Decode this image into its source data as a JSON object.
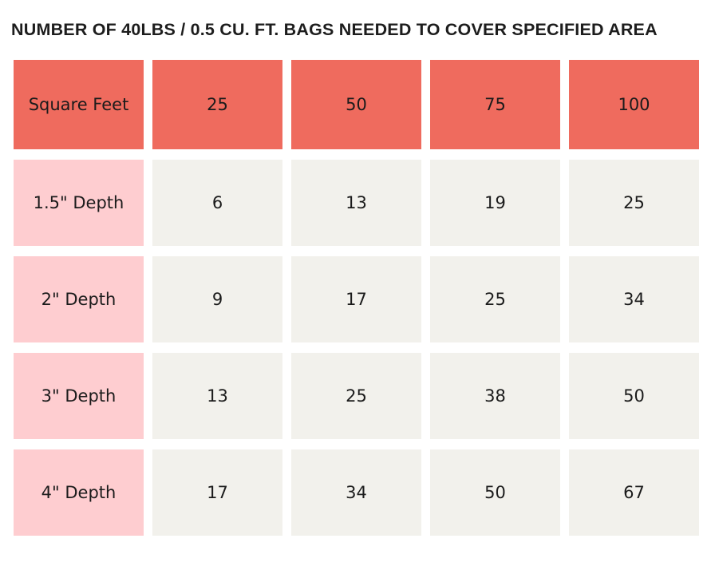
{
  "title": "NUMBER OF 40LBS / 0.5 CU. FT. BAGS NEEDED TO COVER SPECIFIED AREA",
  "chart_data": {
    "type": "table",
    "title": "NUMBER OF 40LBS / 0.5 CU. FT. BAGS NEEDED TO COVER SPECIFIED AREA",
    "columns": [
      "Square Feet",
      "25",
      "50",
      "75",
      "100"
    ],
    "rows": [
      [
        "1.5\" Depth",
        6,
        13,
        19,
        25
      ],
      [
        "2\" Depth",
        9,
        17,
        25,
        34
      ],
      [
        "3\" Depth",
        13,
        25,
        38,
        50
      ],
      [
        "4\" Depth",
        17,
        34,
        50,
        67
      ]
    ]
  },
  "colors": {
    "header_bg": "#EF6B5E",
    "label_bg": "#FECDD0",
    "cell_bg": "#F2F1EC",
    "text": "#1B1B1B",
    "title_color": "#1D1D1D"
  }
}
